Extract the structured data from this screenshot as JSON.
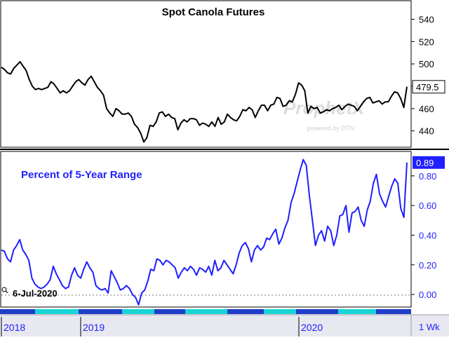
{
  "top_chart": {
    "title": "Spot Canola Futures",
    "last_label": "479.5",
    "watermark": {
      "brand": "ProphetX",
      "tagline": "powered by DTN"
    }
  },
  "bottom_chart": {
    "title": "Percent of 5-Year Range",
    "last_label": "0.89",
    "date_marker": "6-Jul-2020"
  },
  "time_axis": {
    "labels": [
      "2018",
      "2019",
      "2020"
    ],
    "period": "1 Wk"
  },
  "colors": {
    "price_line": "#000000",
    "percent_line": "#1f1fff",
    "last_badge_blue": "#1f1fff",
    "band_dark": "#1f3dc8",
    "band_light": "#19d4d4",
    "axis_strip": "#e8e8f0"
  },
  "chart_data": [
    {
      "type": "line",
      "title": "Spot Canola Futures",
      "xlabel": "",
      "ylabel": "",
      "yticks": [
        440,
        460,
        480,
        500,
        520,
        540
      ],
      "ylim": [
        426,
        556
      ],
      "last_value": 479.5,
      "grid": false,
      "series": [
        {
          "values": [
            497,
            495,
            492,
            491,
            496,
            499,
            502,
            498,
            494,
            486,
            480,
            477,
            478,
            477,
            478,
            479,
            484,
            482,
            478,
            474,
            476,
            474,
            476,
            480,
            484,
            486,
            483,
            481,
            486,
            489,
            484,
            479,
            476,
            472,
            460,
            456,
            453,
            460,
            458,
            455,
            455,
            456,
            453,
            446,
            443,
            438,
            430,
            434,
            445,
            444,
            448,
            456,
            457,
            453,
            455,
            452,
            451,
            441,
            447,
            450,
            448,
            451,
            451,
            450,
            445,
            447,
            446,
            444,
            448,
            444,
            452,
            446,
            448,
            455,
            452,
            450,
            449,
            453,
            459,
            458,
            461,
            459,
            452,
            458,
            463,
            463,
            458,
            463,
            464,
            470,
            469,
            462,
            463,
            467,
            466,
            473,
            483,
            481,
            476,
            456,
            462,
            460,
            461,
            456,
            457,
            459,
            458,
            460,
            461,
            463,
            459,
            462,
            464,
            463,
            462,
            458,
            462,
            466,
            469,
            470,
            465,
            466,
            467,
            464,
            466,
            466,
            471,
            475,
            474,
            469,
            461,
            479.5
          ]
        }
      ]
    },
    {
      "type": "line",
      "title": "Percent of 5-Year Range",
      "xlabel": "",
      "ylabel": "",
      "yticks": [
        0.0,
        0.2,
        0.4,
        0.6,
        0.8
      ],
      "ylim": [
        -0.08,
        0.96
      ],
      "last_value": 0.89,
      "grid": false,
      "series": [
        {
          "values": [
            0.3,
            0.29,
            0.24,
            0.22,
            0.3,
            0.33,
            0.37,
            0.3,
            0.27,
            0.23,
            0.11,
            0.07,
            0.05,
            0.04,
            0.05,
            0.07,
            0.1,
            0.19,
            0.14,
            0.1,
            0.06,
            0.04,
            0.05,
            0.13,
            0.18,
            0.13,
            0.11,
            0.17,
            0.22,
            0.18,
            0.15,
            0.06,
            0.04,
            0.03,
            0.04,
            0.01,
            0.16,
            0.12,
            0.08,
            0.03,
            0.04,
            0.06,
            0.04,
            0.0,
            -0.02,
            -0.07,
            0.01,
            0.03,
            0.09,
            0.17,
            0.16,
            0.24,
            0.23,
            0.2,
            0.23,
            0.22,
            0.2,
            0.18,
            0.11,
            0.15,
            0.18,
            0.16,
            0.19,
            0.17,
            0.13,
            0.18,
            0.17,
            0.15,
            0.19,
            0.13,
            0.23,
            0.16,
            0.18,
            0.23,
            0.2,
            0.17,
            0.14,
            0.2,
            0.28,
            0.33,
            0.35,
            0.31,
            0.22,
            0.3,
            0.33,
            0.3,
            0.32,
            0.38,
            0.37,
            0.41,
            0.44,
            0.34,
            0.38,
            0.45,
            0.5,
            0.62,
            0.68,
            0.76,
            0.84,
            0.91,
            0.87,
            0.67,
            0.5,
            0.33,
            0.4,
            0.43,
            0.36,
            0.46,
            0.43,
            0.33,
            0.4,
            0.53,
            0.54,
            0.6,
            0.42,
            0.55,
            0.56,
            0.59,
            0.5,
            0.46,
            0.57,
            0.63,
            0.75,
            0.81,
            0.68,
            0.63,
            0.59,
            0.66,
            0.73,
            0.78,
            0.75,
            0.58,
            0.52,
            0.89
          ]
        }
      ]
    }
  ]
}
